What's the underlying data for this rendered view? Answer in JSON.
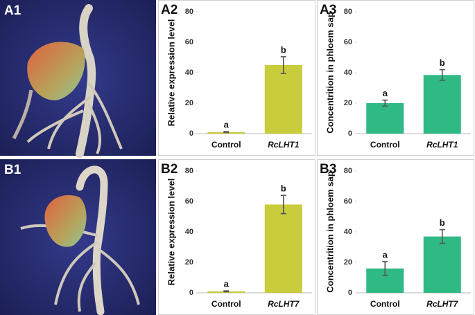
{
  "photo_labels": [
    "A1",
    "B1"
  ],
  "chart_data": [
    {
      "type": "bar",
      "panel_label": "A2",
      "ylabel": "Relative expression level",
      "categories": [
        "Control",
        "RcLHT1"
      ],
      "values": [
        1,
        45
      ],
      "errors": [
        0.3,
        5.5
      ],
      "annotations": [
        "a",
        "b"
      ],
      "color": "#c9cd3b",
      "ylim": [
        0,
        80
      ],
      "yticks": [
        0,
        20,
        40,
        60,
        80
      ]
    },
    {
      "type": "bar",
      "panel_label": "A3",
      "ylabel": "Concentrition in phloem sap",
      "categories": [
        "Control",
        "RcLHT1"
      ],
      "values": [
        20,
        38.5
      ],
      "errors": [
        2,
        3.5
      ],
      "annotations": [
        "a",
        "b"
      ],
      "color": "#2fb985",
      "ylim": [
        0,
        80
      ],
      "yticks": [
        0,
        20,
        40,
        60,
        80
      ]
    },
    {
      "type": "bar",
      "panel_label": "B2",
      "ylabel": "Relative expression level",
      "categories": [
        "Control",
        "RcLHT7"
      ],
      "values": [
        1,
        58
      ],
      "errors": [
        0.3,
        6
      ],
      "annotations": [
        "a",
        "b"
      ],
      "color": "#c9cd3b",
      "ylim": [
        0,
        80
      ],
      "yticks": [
        0,
        20,
        40,
        60,
        80
      ]
    },
    {
      "type": "bar",
      "panel_label": "B3",
      "ylabel": "Concentrition in phloem sap",
      "categories": [
        "Control",
        "RcLHT7"
      ],
      "values": [
        16,
        37
      ],
      "errors": [
        4.5,
        4.5
      ],
      "annotations": [
        "a",
        "b"
      ],
      "color": "#2fb985",
      "ylim": [
        0,
        80
      ],
      "yticks": [
        0,
        20,
        40,
        60,
        80
      ]
    }
  ]
}
